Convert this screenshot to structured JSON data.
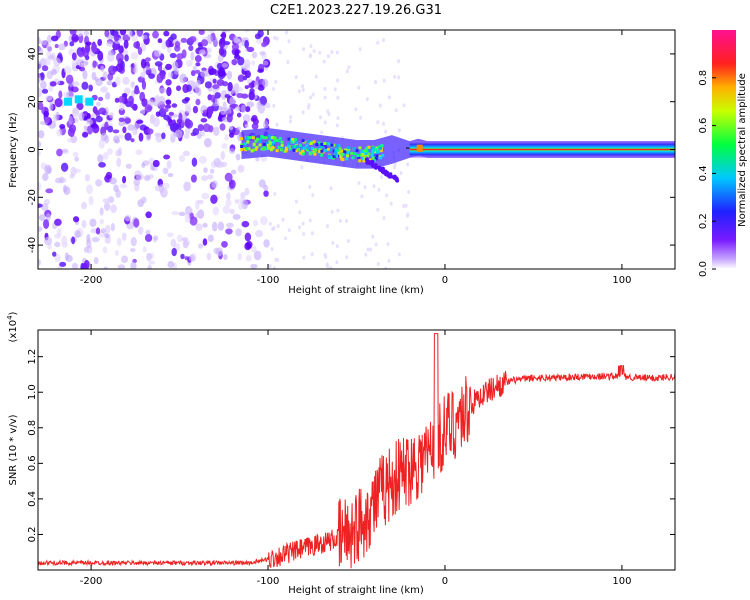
{
  "title": "C2E1.2023.227.19.26.G31",
  "colors": {
    "snr_line": "#ee2222",
    "spectrogram_noise": "#7a2cff",
    "ridge_core": "#ff2020"
  },
  "chart_data": [
    {
      "type": "heatmap",
      "name": "spectrogram",
      "xlabel": "Height of straight line (km)",
      "ylabel": "Frequency (Hz)",
      "xlim": [
        -230,
        130
      ],
      "ylim": [
        -50,
        50
      ],
      "xticks": [
        -200,
        -100,
        0,
        100
      ],
      "xtick_labels": [
        "-200",
        "-100",
        "0",
        "100"
      ],
      "yticks": [
        -40,
        -20,
        0,
        20,
        40
      ],
      "ytick_labels": [
        "-40",
        "-20",
        "0",
        "20",
        "40"
      ],
      "colorbar": {
        "label": "Normalized spectral amplitude",
        "range": [
          0,
          1
        ],
        "ticks": [
          0.0,
          0.2,
          0.4,
          0.6,
          0.8
        ],
        "tick_labels": [
          "0.0",
          "0.2",
          "0.4",
          "0.6",
          "0.8"
        ],
        "colormap": "hsv-rainbow (white → purple → blue → cyan → green → yellow → red → magenta)"
      },
      "ridge": {
        "x": [
          -115,
          -100,
          -90,
          -80,
          -70,
          -60,
          -50,
          -40,
          -30,
          -20,
          -15,
          -10,
          0,
          20,
          50,
          80,
          100,
          130
        ],
        "frequency_hz": [
          2,
          3,
          2,
          1,
          0,
          -1,
          -2,
          -2,
          0,
          0,
          1,
          0,
          0,
          0,
          0,
          0,
          0,
          0
        ]
      },
      "grid": false
    },
    {
      "type": "line",
      "name": "snr",
      "xlabel": "Height of straight line (km)",
      "ylabel": "SNR (10 * v/v)",
      "y_multiplier_label": "(x10",
      "y_multiplier_exp": "4",
      "y_multiplier_close": ")",
      "xlim": [
        -230,
        130
      ],
      "ylim": [
        0,
        1.35
      ],
      "xticks": [
        -200,
        -100,
        0,
        100
      ],
      "xtick_labels": [
        "-200",
        "-100",
        "0",
        "100"
      ],
      "yticks": [
        0.2,
        0.4,
        0.6,
        0.8,
        1.0,
        1.2
      ],
      "ytick_labels": [
        "0.2",
        "0.4",
        "0.6",
        "0.8",
        "1.0",
        "1.2"
      ],
      "series": [
        {
          "x": [
            -230,
            -200,
            -150,
            -110,
            -100,
            -90,
            -80,
            -70,
            -60,
            -50,
            -45,
            -40,
            -35,
            -30,
            -20,
            -10,
            -5,
            0,
            10,
            20,
            30,
            40,
            50,
            60,
            80,
            90,
            100,
            110,
            120,
            130
          ],
          "y": [
            0.04,
            0.04,
            0.04,
            0.04,
            0.06,
            0.09,
            0.12,
            0.15,
            0.18,
            0.24,
            0.3,
            0.38,
            0.45,
            0.5,
            0.58,
            0.65,
            0.72,
            0.78,
            0.88,
            0.98,
            1.04,
            1.07,
            1.08,
            1.08,
            1.09,
            1.09,
            1.09,
            1.08,
            1.08,
            1.09
          ]
        }
      ],
      "grid": false
    }
  ]
}
